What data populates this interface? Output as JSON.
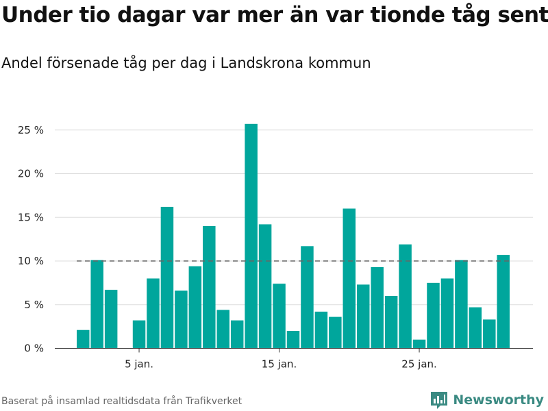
{
  "title": "Under tio dagar var mer än var tionde tåg sent",
  "subtitle": "Andel försenade tåg per dag i Landskrona kommun",
  "footer": "Baserat på insamlad realtidsdata från Trafikverket",
  "brand": {
    "name": "Newsworthy",
    "icon": "newsworthy-logo-icon"
  },
  "colors": {
    "bar": "#00a69c",
    "reference_line": "#666666",
    "grid": "#dddddd",
    "brand": "#3a8a82"
  },
  "chart_data": {
    "type": "bar",
    "x": [
      1,
      2,
      3,
      4,
      5,
      6,
      7,
      8,
      9,
      10,
      11,
      12,
      13,
      14,
      15,
      16,
      17,
      18,
      19,
      20,
      21,
      22,
      23,
      24,
      25,
      26,
      27,
      28,
      29,
      30,
      31
    ],
    "values": [
      2.1,
      10.1,
      6.7,
      0,
      3.2,
      8.0,
      16.2,
      6.6,
      9.4,
      14.0,
      4.4,
      3.2,
      25.7,
      14.2,
      7.4,
      2.0,
      11.7,
      4.2,
      3.6,
      16.0,
      7.3,
      9.3,
      6.0,
      11.9,
      1.0,
      7.5,
      8.0,
      10.1,
      4.7,
      3.3,
      10.7
    ],
    "unit": "%",
    "ylim": [
      0,
      27
    ],
    "yticks": [
      0,
      5,
      10,
      15,
      20,
      25
    ],
    "ytick_labels": [
      "0 %",
      "5 %",
      "10 %",
      "15 %",
      "20 %",
      "25 %"
    ],
    "xticks": [
      5,
      15,
      25
    ],
    "xtick_labels": [
      "5 jan.",
      "15 jan.",
      "25 jan."
    ],
    "reference_line": 10,
    "grid": true
  }
}
